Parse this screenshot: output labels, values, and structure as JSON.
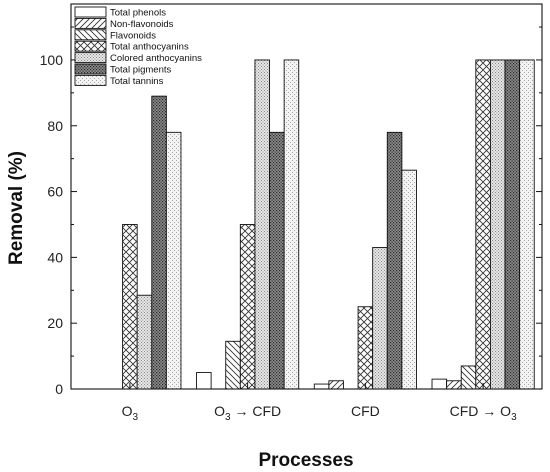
{
  "chart_data": {
    "type": "bar",
    "title": "",
    "xlabel": "Processes",
    "ylabel": "Removal (%)",
    "ylim": [
      0,
      117
    ],
    "yticks": [
      0,
      20,
      40,
      60,
      80,
      100
    ],
    "categories": [
      {
        "base": "O",
        "sub": "3",
        "rest": ""
      },
      {
        "base": "O",
        "sub": "3",
        "rest": " → CFD"
      },
      {
        "base": "CFD",
        "sub": "",
        "rest": ""
      },
      {
        "base": "CFD → O",
        "sub": "3",
        "rest": ""
      }
    ],
    "series": [
      {
        "name": "Total phenols",
        "pattern": "blank",
        "values": [
          0,
          5,
          1.5,
          3
        ]
      },
      {
        "name": "Non-flavonoids",
        "pattern": "diag-up",
        "values": [
          0,
          0,
          2.5,
          2.5
        ]
      },
      {
        "name": "Flavonoids",
        "pattern": "diag-down",
        "values": [
          0,
          14.5,
          0,
          7
        ]
      },
      {
        "name": "Total anthocyanins",
        "pattern": "crosshatch",
        "values": [
          50,
          50,
          25,
          100
        ]
      },
      {
        "name": "Colored anthocyanins",
        "pattern": "fine-dots",
        "values": [
          28.5,
          100,
          43,
          100
        ]
      },
      {
        "name": "Total pigments",
        "pattern": "dense-dark",
        "values": [
          89,
          78,
          78,
          100
        ]
      },
      {
        "name": "Total tannins",
        "pattern": "light-dots",
        "values": [
          78,
          100,
          66.5,
          100
        ]
      }
    ],
    "legend": "top-left",
    "grid": false
  }
}
